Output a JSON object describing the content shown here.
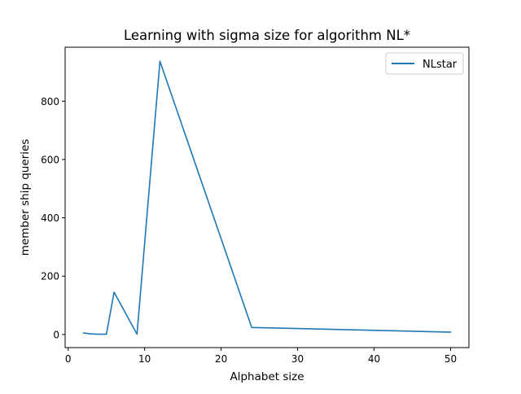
{
  "chart_data": {
    "type": "line",
    "title": "Learning with sigma size for algorithm NL*",
    "xlabel": "Alphabet size",
    "ylabel": "member ship queries",
    "xlim": [
      -0.4,
      52.4
    ],
    "ylim": [
      -45,
      985
    ],
    "xticks": [
      0,
      10,
      20,
      30,
      40,
      50
    ],
    "yticks": [
      0,
      200,
      400,
      600,
      800
    ],
    "grid": false,
    "legend_position": "top-right",
    "series": [
      {
        "name": "NLstar",
        "color": "#1f77b4",
        "x": [
          2,
          3,
          4,
          5,
          6,
          9,
          12,
          24,
          50
        ],
        "y": [
          5,
          2,
          1,
          1,
          145,
          1,
          937,
          24,
          8
        ]
      }
    ]
  }
}
